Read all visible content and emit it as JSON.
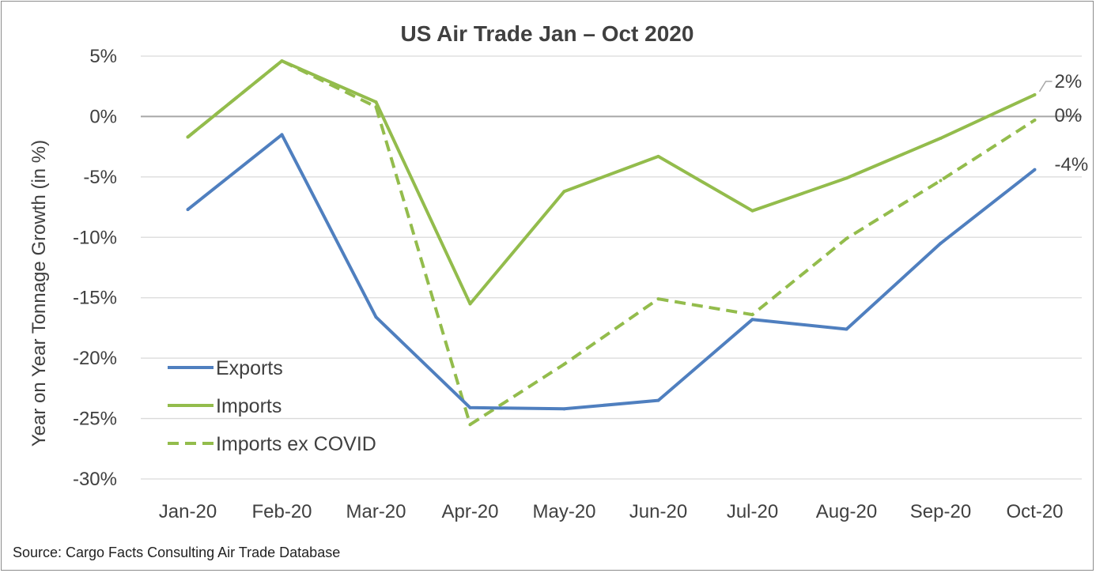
{
  "chart_data": {
    "type": "line",
    "title": "US Air Trade Jan – Oct 2020",
    "xlabel": "",
    "ylabel": "Year on Year Tonnage Growth (in %)",
    "categories": [
      "Jan-20",
      "Feb-20",
      "Mar-20",
      "Apr-20",
      "May-20",
      "Jun-20",
      "Jul-20",
      "Aug-20",
      "Sep-20",
      "Oct-20"
    ],
    "ylim": [
      -30,
      5
    ],
    "yticks": [
      5,
      0,
      -5,
      -10,
      -15,
      -20,
      -25,
      -30
    ],
    "ytick_labels": [
      "5%",
      "0%",
      "-5%",
      "-10%",
      "-15%",
      "-20%",
      "-25%",
      "-30%"
    ],
    "grid": true,
    "legend_position": "bottom-left",
    "series": [
      {
        "name": "Exports",
        "style": "solid",
        "color": "#4f7fbf",
        "values": [
          -7.7,
          -1.5,
          -16.6,
          -24.1,
          -24.2,
          -23.5,
          -16.8,
          -17.6,
          -10.5,
          -4.4
        ],
        "end_label": "-4%"
      },
      {
        "name": "Imports",
        "style": "solid",
        "color": "#93bc4c",
        "values": [
          -1.7,
          4.6,
          1.2,
          -15.5,
          -6.2,
          -3.3,
          -7.8,
          -5.1,
          -1.8,
          1.8
        ],
        "end_label": "2%"
      },
      {
        "name": "Imports ex COVID",
        "style": "dashed",
        "color": "#93bc4c",
        "values": [
          -1.7,
          4.6,
          0.8,
          -25.5,
          -20.5,
          -15.1,
          -16.4,
          -10.1,
          -5.3,
          -0.3
        ],
        "end_label": "0%"
      }
    ],
    "source": "Source: Cargo Facts Consulting Air Trade Database"
  }
}
